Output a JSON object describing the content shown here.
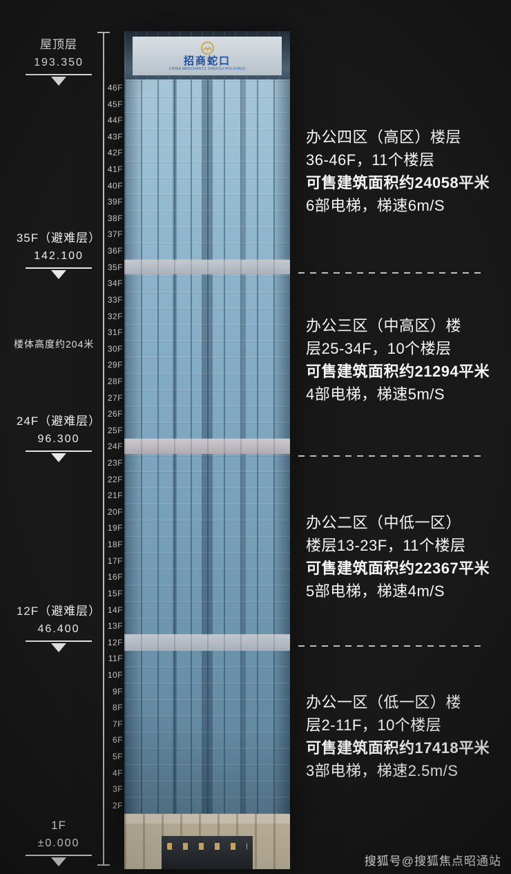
{
  "page": {
    "watermark": "搜狐号@搜狐焦点昭通站",
    "height_note": "楼体高度约204米"
  },
  "logo": {
    "name": "招商蛇口",
    "subtext": "CHINA MERCHANTS SHEKOU HOLDINGS"
  },
  "height_markers": [
    {
      "id": "roof",
      "label": "屋顶层",
      "value": "193.350"
    },
    {
      "id": "refuge-35f",
      "label": "35F（避难层）",
      "value": "142.100"
    },
    {
      "id": "refuge-24f",
      "label": "24F（避难层）",
      "value": "96.300"
    },
    {
      "id": "refuge-12f",
      "label": "12F（避难层）",
      "value": "46.400"
    },
    {
      "id": "ground-1f",
      "label": "1F",
      "value": "±0.000"
    }
  ],
  "floors": [
    "46F",
    "45F",
    "44F",
    "43F",
    "42F",
    "41F",
    "40F",
    "39F",
    "38F",
    "37F",
    "36F",
    "35F",
    "34F",
    "33F",
    "32F",
    "31F",
    "30F",
    "29F",
    "28F",
    "27F",
    "26F",
    "25F",
    "24F",
    "23F",
    "22F",
    "21F",
    "20F",
    "19F",
    "18F",
    "17F",
    "16F",
    "15F",
    "14F",
    "13F",
    "12F",
    "11F",
    "10F",
    "9F",
    "8F",
    "7F",
    "6F",
    "5F",
    "4F",
    "3F",
    "2F"
  ],
  "zones": [
    {
      "id": "zone-4-high",
      "lines": [
        {
          "text": "办公四区（高区）楼层",
          "bold": false
        },
        {
          "text": "36-46F，11个楼层",
          "bold": false
        },
        {
          "text": "可售建筑面积约24058平米",
          "bold": true
        },
        {
          "text": "6部电梯，梯速6m/S",
          "bold": false
        }
      ]
    },
    {
      "id": "zone-3-mid-high",
      "lines": [
        {
          "text": "办公三区（中高区）楼",
          "bold": false
        },
        {
          "text": "层25-34F，10个楼层",
          "bold": false
        },
        {
          "text": "可售建筑面积约21294平米",
          "bold": true
        },
        {
          "text": "4部电梯，梯速5m/S",
          "bold": false
        }
      ]
    },
    {
      "id": "zone-2-mid-low",
      "lines": [
        {
          "text": "办公二区（中低一区）",
          "bold": false
        },
        {
          "text": "楼层13-23F，11个楼层",
          "bold": false
        },
        {
          "text": "可售建筑面积约22367平米",
          "bold": true
        },
        {
          "text": "5部电梯，梯速4m/S",
          "bold": false
        }
      ]
    },
    {
      "id": "zone-1-low",
      "lines": [
        {
          "text": "办公一区（低一区）楼",
          "bold": false
        },
        {
          "text": "层2-11F，10个楼层",
          "bold": false
        },
        {
          "text": "可售建筑面积约17418平米",
          "bold": true
        },
        {
          "text": "3部电梯，梯速2.5m/S",
          "bold": false
        }
      ]
    }
  ]
}
